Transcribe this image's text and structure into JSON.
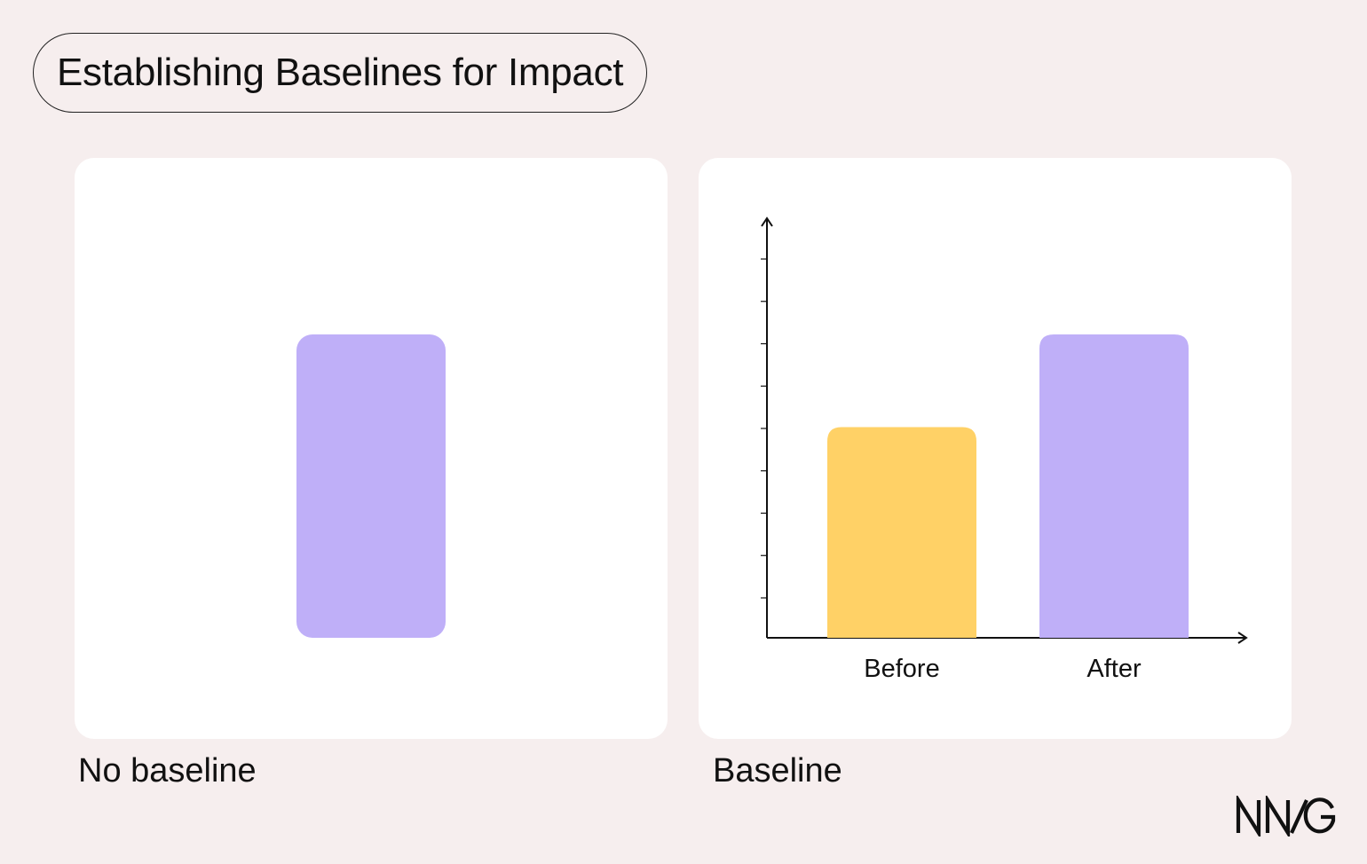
{
  "title": "Establishing Baselines for Impact",
  "colors": {
    "background": "#f6eeee",
    "panel": "#ffffff",
    "before_bar": "#ffd166",
    "after_bar": "#bfaff8",
    "axis": "#111111"
  },
  "left_panel": {
    "caption": "No baseline",
    "bar": {
      "label": "",
      "relative_value": 1.0
    }
  },
  "right_panel": {
    "caption": "Baseline",
    "chart_data": {
      "type": "bar",
      "title": "",
      "xlabel": "",
      "ylabel": "",
      "categories": [
        "Before",
        "After"
      ],
      "values": [
        5,
        7.2
      ],
      "ylim": [
        0,
        10
      ],
      "y_ticks": 9,
      "bar_colors": [
        "#ffd166",
        "#bfaff8"
      ],
      "grid": false,
      "tick_labels_shown": false
    }
  },
  "logo": {
    "text": "NN/G"
  }
}
